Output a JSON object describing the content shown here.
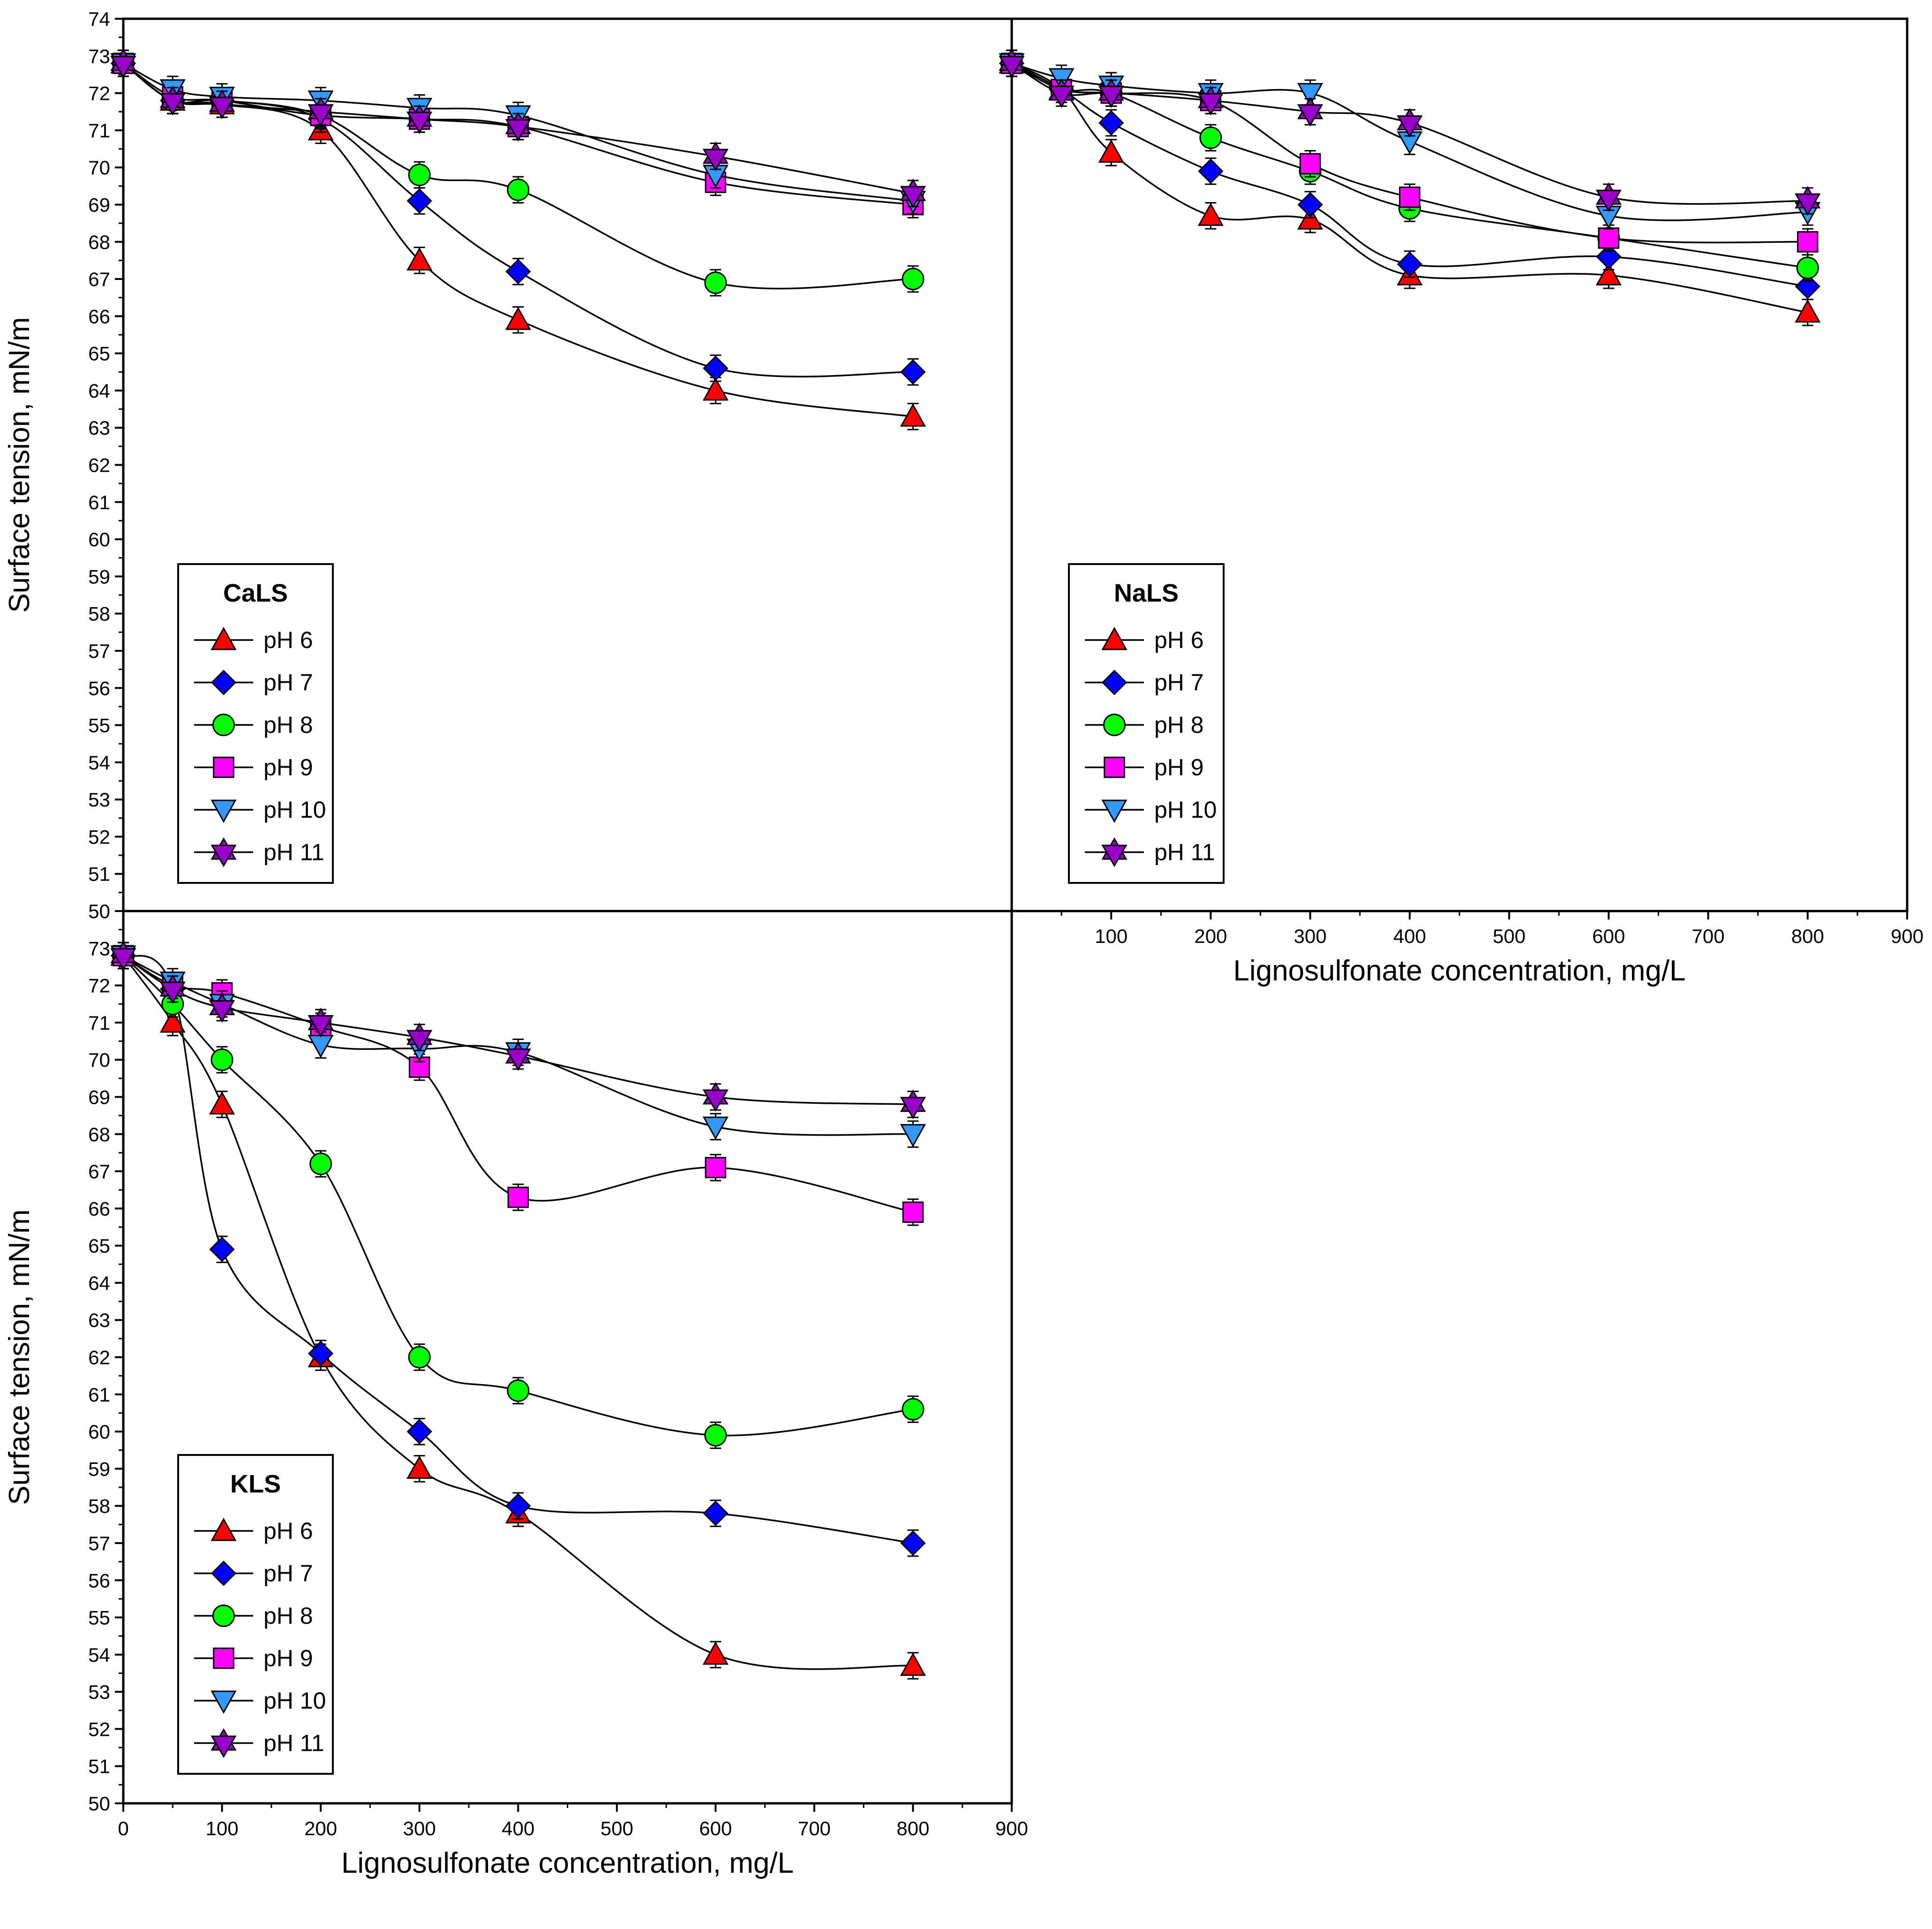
{
  "chart_data": [
    {
      "type": "line",
      "panel": "top-left",
      "legend_title": "CaLS",
      "ylabel": "Surface tension, mN/m",
      "xlabel": "",
      "xlim": [
        0,
        900
      ],
      "ylim": [
        50,
        74
      ],
      "x_ticks_shown": false,
      "y_tick_labels": [
        "50",
        "51",
        "52",
        "53",
        "54",
        "55",
        "56",
        "57",
        "58",
        "59",
        "60",
        "61",
        "62",
        "63",
        "64",
        "65",
        "66",
        "67",
        "68",
        "69",
        "70",
        "71",
        "72",
        "73",
        "74"
      ],
      "x": [
        0,
        50,
        100,
        200,
        300,
        400,
        600,
        800
      ],
      "series": [
        {
          "name": "pH 6",
          "values": [
            72.8,
            71.8,
            71.7,
            71.0,
            67.5,
            65.9,
            64.0,
            63.3
          ]
        },
        {
          "name": "pH 7",
          "values": [
            72.8,
            71.8,
            71.8,
            71.3,
            69.1,
            67.2,
            64.6,
            64.5
          ]
        },
        {
          "name": "pH 8",
          "values": [
            72.8,
            71.8,
            71.8,
            71.4,
            69.8,
            69.4,
            66.9,
            67.0
          ]
        },
        {
          "name": "pH 9",
          "values": [
            72.8,
            71.9,
            71.8,
            71.4,
            71.3,
            71.1,
            69.6,
            69.0
          ]
        },
        {
          "name": "pH 10",
          "values": [
            72.8,
            72.1,
            71.9,
            71.8,
            71.6,
            71.4,
            69.8,
            69.1
          ]
        },
        {
          "name": "pH 11",
          "values": [
            72.8,
            71.8,
            71.7,
            71.5,
            71.3,
            71.1,
            70.3,
            69.3
          ]
        }
      ]
    },
    {
      "type": "line",
      "panel": "top-right",
      "legend_title": "NaLS",
      "ylabel": "",
      "xlabel": "Lignosulfonate concentration, mg/L",
      "xlim": [
        0,
        900
      ],
      "ylim": [
        50,
        74
      ],
      "x_tick_labels": [
        "100",
        "200",
        "300",
        "400",
        "500",
        "600",
        "700",
        "800",
        "900"
      ],
      "x": [
        0,
        50,
        100,
        200,
        300,
        400,
        600,
        800
      ],
      "series": [
        {
          "name": "pH 6",
          "values": [
            72.8,
            72.1,
            70.4,
            68.7,
            68.6,
            67.1,
            67.1,
            66.1
          ]
        },
        {
          "name": "pH 7",
          "values": [
            72.8,
            72.1,
            71.2,
            69.9,
            69.0,
            67.4,
            67.6,
            66.8
          ]
        },
        {
          "name": "pH 8",
          "values": [
            72.8,
            72.1,
            72.0,
            70.8,
            69.9,
            68.9,
            68.1,
            67.3
          ]
        },
        {
          "name": "pH 9",
          "values": [
            72.8,
            72.1,
            72.0,
            71.8,
            70.1,
            69.2,
            68.1,
            68.0
          ]
        },
        {
          "name": "pH 10",
          "values": [
            72.8,
            72.4,
            72.2,
            72.0,
            72.0,
            70.7,
            68.7,
            68.8
          ]
        },
        {
          "name": "pH 11",
          "values": [
            72.8,
            72.0,
            72.0,
            71.8,
            71.5,
            71.2,
            69.2,
            69.1
          ]
        }
      ]
    },
    {
      "type": "line",
      "panel": "bottom-left",
      "legend_title": "KLS",
      "ylabel": "Surface tension, mN/m",
      "xlabel": "Lignosulfonate concentration, mg/L",
      "xlim": [
        0,
        900
      ],
      "ylim": [
        50,
        74
      ],
      "x_tick_labels": [
        "0",
        "100",
        "200",
        "300",
        "400",
        "500",
        "600",
        "700",
        "800",
        "900"
      ],
      "y_tick_labels": [
        "50",
        "51",
        "52",
        "53",
        "54",
        "55",
        "56",
        "57",
        "58",
        "59",
        "60",
        "61",
        "62",
        "63",
        "64",
        "65",
        "66",
        "67",
        "68",
        "69",
        "70",
        "71",
        "72",
        "73"
      ],
      "x": [
        0,
        50,
        100,
        200,
        300,
        400,
        600,
        800
      ],
      "series": [
        {
          "name": "pH 6",
          "values": [
            72.8,
            71.0,
            68.8,
            62.0,
            59.0,
            57.8,
            54.0,
            53.7
          ]
        },
        {
          "name": "pH 7",
          "values": [
            72.8,
            71.9,
            64.9,
            62.1,
            60.0,
            58.0,
            57.8,
            57.0
          ]
        },
        {
          "name": "pH 8",
          "values": [
            72.8,
            71.5,
            70.0,
            67.2,
            62.0,
            61.1,
            59.9,
            60.6
          ]
        },
        {
          "name": "pH 9",
          "values": [
            72.8,
            72.0,
            71.8,
            70.9,
            69.8,
            66.3,
            67.1,
            65.9
          ]
        },
        {
          "name": "pH 10",
          "values": [
            72.8,
            72.1,
            71.5,
            70.4,
            70.3,
            70.2,
            68.2,
            68.0
          ]
        },
        {
          "name": "pH 11",
          "values": [
            72.8,
            71.9,
            71.4,
            71.0,
            70.6,
            70.1,
            69.0,
            68.8
          ]
        }
      ]
    }
  ],
  "styles": {
    "pH 6": {
      "marker": "triangle-up",
      "color": "#FF0000"
    },
    "pH 7": {
      "marker": "diamond",
      "color": "#0000FF"
    },
    "pH 8": {
      "marker": "circle",
      "color": "#00FF00"
    },
    "pH 9": {
      "marker": "square",
      "color": "#FF00FF"
    },
    "pH 10": {
      "marker": "triangle-down",
      "color": "#3399FF"
    },
    "pH 11": {
      "marker": "star",
      "color": "#9900CC"
    }
  }
}
